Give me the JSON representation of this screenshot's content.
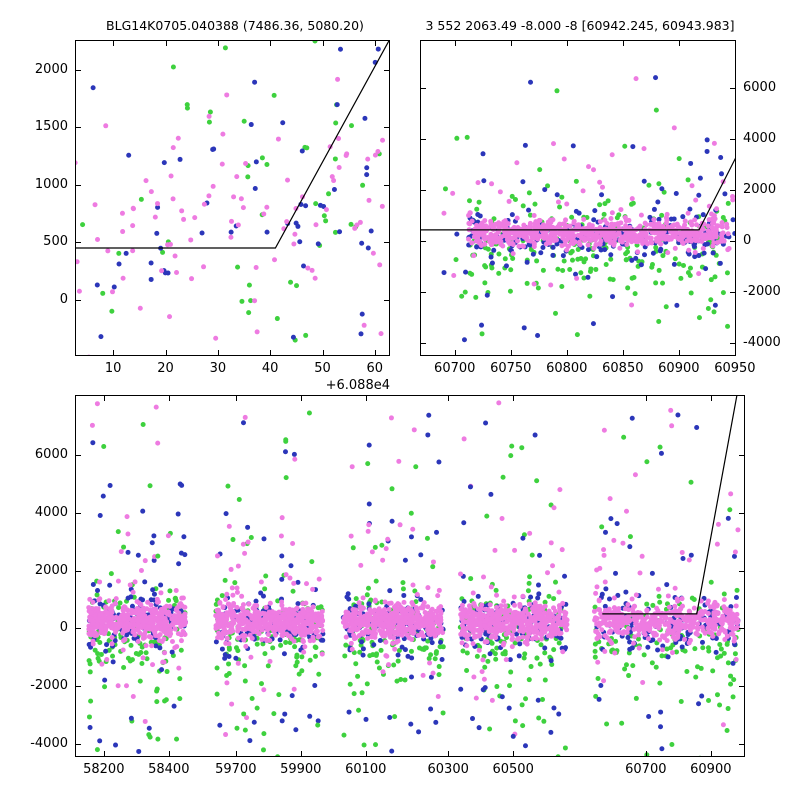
{
  "title_left": "BLG14K0705.040388 (7486.36, 5080.20)",
  "title_right": "3 552 2063.49 -8.000 -8 [60942.245, 60943.983]",
  "colors": {
    "green": "#3ed13e",
    "blue": "#2b36b9",
    "violet": "#ee7be1",
    "line": "#000000"
  },
  "chart_data": [
    {
      "id": "top_left",
      "type": "scatter",
      "x_mode": "linear",
      "xlim": [
        2.7,
        62.9
      ],
      "ylim": [
        -490,
        2260
      ],
      "x_offset_label": "+6.088e4",
      "xticks": [
        {
          "label": "10",
          "x": 10
        },
        {
          "label": "20",
          "x": 20
        },
        {
          "label": "30",
          "x": 30
        },
        {
          "label": "40",
          "x": 40
        },
        {
          "label": "50",
          "x": 50
        },
        {
          "label": "60",
          "x": 60
        }
      ],
      "yticks": [
        {
          "label": "0",
          "y": 0
        },
        {
          "label": "500",
          "y": 500
        },
        {
          "label": "1000",
          "y": 1000
        },
        {
          "label": "1500",
          "y": 1500
        },
        {
          "label": "2000",
          "y": 2000
        }
      ],
      "ytick_side": "left",
      "model_line": [
        [
          2.7,
          450
        ],
        [
          41,
          450
        ],
        [
          62.9,
          2270
        ]
      ],
      "seed": 7,
      "groups": [
        {
          "color": "green",
          "n": 60,
          "x": [
            2.7,
            62.9
          ],
          "y_mu": 500,
          "y_sigma": 900
        },
        {
          "color": "blue",
          "n": 60,
          "x": [
            2.7,
            62.9
          ],
          "y_mu": 900,
          "y_sigma": 750
        },
        {
          "color": "violet",
          "n": 95,
          "x": [
            2.7,
            62.9
          ],
          "y_mu": 700,
          "y_sigma": 600
        }
      ]
    },
    {
      "id": "top_right",
      "type": "scatter",
      "x_mode": "linear",
      "xlim": [
        60669,
        60951
      ],
      "ylim": [
        -4500,
        7900
      ],
      "xticks": [
        {
          "label": "60700",
          "x": 60700
        },
        {
          "label": "60750",
          "x": 60750
        },
        {
          "label": "60800",
          "x": 60800
        },
        {
          "label": "60850",
          "x": 60850
        },
        {
          "label": "60900",
          "x": 60900
        },
        {
          "label": "60950",
          "x": 60950
        }
      ],
      "yticks": [
        {
          "label": "-4000",
          "y": -4000
        },
        {
          "label": "-2000",
          "y": -2000
        },
        {
          "label": "0",
          "y": 0
        },
        {
          "label": "2000",
          "y": 2000
        },
        {
          "label": "4000",
          "y": 4000
        },
        {
          "label": "6000",
          "y": 6000
        }
      ],
      "ytick_side": "right",
      "model_line": [
        [
          60669,
          450
        ],
        [
          60918,
          450
        ],
        [
          60951,
          3300
        ]
      ],
      "seed": 11,
      "groups": [
        {
          "color": "green",
          "n": 70,
          "x": [
            60685,
            60950
          ],
          "y_mu": -400,
          "y_sigma": 2000
        },
        {
          "color": "green",
          "n": 150,
          "x": [
            60712,
            60945
          ],
          "y_mu": -250,
          "y_sigma": 750
        },
        {
          "color": "blue",
          "n": 55,
          "x": [
            60685,
            60950
          ],
          "y_mu": 400,
          "y_sigma": 2000
        },
        {
          "color": "blue",
          "n": 175,
          "x": [
            60712,
            60945
          ],
          "y_mu": 150,
          "y_sigma": 480
        },
        {
          "color": "violet",
          "n": 55,
          "x": [
            60685,
            60950
          ],
          "y_mu": 900,
          "y_sigma": 1500
        },
        {
          "color": "violet",
          "n": 660,
          "x": [
            60712,
            60945
          ],
          "y_mu": 330,
          "y_sigma": 260
        },
        {
          "color": "green",
          "n": 4,
          "x": [
            60700,
            60945
          ],
          "y_uniform": [
            2500,
            7400
          ]
        },
        {
          "color": "violet",
          "n": 4,
          "x": [
            60700,
            60945
          ],
          "y_uniform": [
            2500,
            7700
          ]
        },
        {
          "color": "blue",
          "n": 3,
          "x": [
            60700,
            60945
          ],
          "y_uniform": [
            3000,
            7200
          ]
        },
        {
          "color": "green",
          "n": 4,
          "x": [
            60700,
            60945
          ],
          "y_uniform": [
            -4400,
            -2400
          ]
        },
        {
          "color": "blue",
          "n": 3,
          "x": [
            60700,
            60945
          ],
          "y_uniform": [
            -4300,
            -2500
          ]
        }
      ]
    },
    {
      "id": "bottom",
      "type": "scatter",
      "x_mode": "frac",
      "ylim": [
        -4450,
        8070
      ],
      "xticks": [
        {
          "label": "58200",
          "x": 0.043
        },
        {
          "label": "58400",
          "x": 0.14
        },
        {
          "label": "59700",
          "x": 0.24
        },
        {
          "label": "59900",
          "x": 0.337
        },
        {
          "label": "60100",
          "x": 0.434
        },
        {
          "label": "60300",
          "x": 0.557
        },
        {
          "label": "60500",
          "x": 0.654
        },
        {
          "label": "60700",
          "x": 0.852
        },
        {
          "label": "60900",
          "x": 0.949
        }
      ],
      "yticks": [
        {
          "label": "-4000",
          "y": -4000
        },
        {
          "label": "-2000",
          "y": -2000
        },
        {
          "label": "0",
          "y": 0
        },
        {
          "label": "2000",
          "y": 2000
        },
        {
          "label": "4000",
          "y": 4000
        },
        {
          "label": "6000",
          "y": 6000
        }
      ],
      "ytick_side": "left",
      "model_line": [
        [
          0.787,
          500
        ],
        [
          0.928,
          500
        ],
        [
          0.988,
          8070
        ]
      ],
      "seed": 23,
      "clusters": [
        {
          "x": [
            0.02,
            0.165
          ]
        },
        {
          "x": [
            0.21,
            0.37
          ]
        },
        {
          "x": [
            0.4,
            0.55
          ]
        },
        {
          "x": [
            0.575,
            0.735
          ]
        },
        {
          "x": [
            0.775,
            0.99
          ]
        }
      ],
      "cluster_groups": [
        {
          "color": "green",
          "n": 36,
          "y_mu": -600,
          "y_sigma": 2300
        },
        {
          "color": "green",
          "n": 95,
          "y_mu": -150,
          "y_sigma": 750
        },
        {
          "color": "blue",
          "n": 26,
          "y_mu": 200,
          "y_sigma": 2300
        },
        {
          "color": "blue",
          "n": 100,
          "y_mu": 100,
          "y_sigma": 520
        },
        {
          "color": "violet",
          "n": 40,
          "y_mu": 600,
          "y_sigma": 1600
        },
        {
          "color": "violet",
          "n": 430,
          "y_mu": 230,
          "y_sigma": 300
        },
        {
          "color": "green",
          "n": 5,
          "y_uniform": [
            2200,
            7500
          ]
        },
        {
          "color": "blue",
          "n": 4,
          "y_uniform": [
            2500,
            7600
          ]
        },
        {
          "color": "violet",
          "n": 5,
          "y_uniform": [
            2500,
            7800
          ]
        },
        {
          "color": "green",
          "n": 5,
          "y_uniform": [
            -4400,
            -2200
          ]
        },
        {
          "color": "blue",
          "n": 4,
          "y_uniform": [
            -4300,
            -2300
          ]
        }
      ]
    }
  ]
}
